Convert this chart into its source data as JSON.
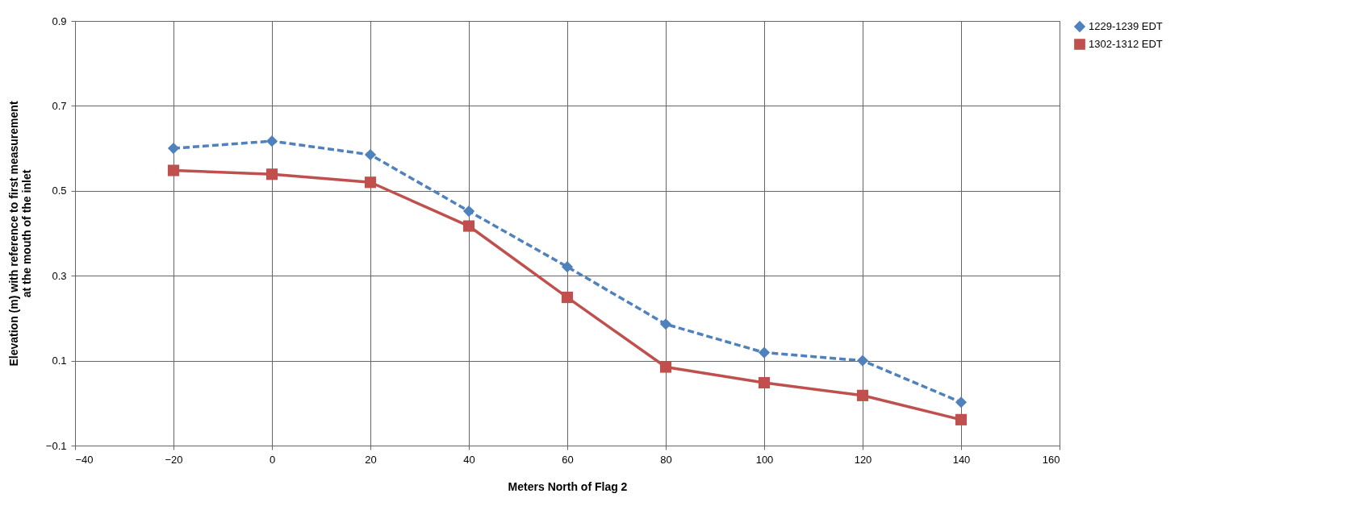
{
  "chart_data": {
    "type": "line",
    "xlabel": "Meters North of Flag 2",
    "ylabel": "Elevation (m) with reference to first measurement at the mouth of the inlet",
    "x": [
      -20,
      0,
      20,
      40,
      60,
      80,
      100,
      120,
      140
    ],
    "series": [
      {
        "name": "1229-1239 EDT",
        "color": "#4f81bd",
        "marker": "diamond",
        "line_style": "dashed",
        "values": [
          0.6,
          0.617,
          0.585,
          0.452,
          0.321,
          0.186,
          0.119,
          0.1,
          0.002
        ]
      },
      {
        "name": "1302-1312 EDT",
        "color": "#c0504d",
        "marker": "square",
        "line_style": "solid",
        "values": [
          0.548,
          0.539,
          0.52,
          0.417,
          0.249,
          0.085,
          0.048,
          0.018,
          -0.039
        ]
      }
    ],
    "xlim": [
      -40,
      160
    ],
    "xticks": [
      -40,
      -20,
      0,
      20,
      40,
      60,
      80,
      100,
      120,
      140,
      160
    ],
    "ylim": [
      -0.1,
      0.9
    ],
    "yticks": [
      -0.1,
      0.1,
      0.3,
      0.5,
      0.7,
      0.9
    ],
    "grid": true,
    "legend": "right"
  }
}
